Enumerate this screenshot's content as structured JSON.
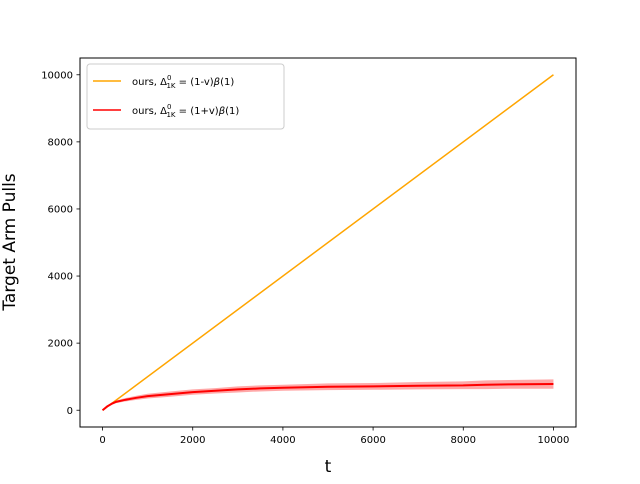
{
  "chart_data": {
    "type": "line",
    "title": "",
    "xlabel": "t",
    "ylabel": "Target Arm Pulls",
    "xlim": [
      -500,
      10500
    ],
    "ylim": [
      -500,
      10500
    ],
    "xticks": [
      0,
      2000,
      4000,
      6000,
      8000,
      10000
    ],
    "yticks": [
      0,
      2000,
      4000,
      6000,
      8000,
      10000
    ],
    "grid": false,
    "legend_position": "top-left",
    "series": [
      {
        "name": "ours, Δ⁰₁K = (1-v)β(1)",
        "legend_main": "ours, Δ",
        "legend_sup": "0",
        "legend_sub": "1K",
        "legend_tail": " = (1-v)",
        "legend_beta": "β",
        "legend_end": "(1)",
        "color": "#ffa500",
        "x": [
          0,
          10000
        ],
        "y": [
          0,
          10000
        ]
      },
      {
        "name": "ours, Δ⁰₁K = (1+v)β(1)",
        "legend_main": "ours, Δ",
        "legend_sup": "0",
        "legend_sub": "1K",
        "legend_tail": " = (1+v)",
        "legend_beta": "β",
        "legend_end": "(1)",
        "color": "#ff0000",
        "band_color": "#ff6060",
        "x": [
          0,
          100,
          200,
          300,
          500,
          750,
          1000,
          1500,
          2000,
          2500,
          3000,
          3500,
          4000,
          5000,
          6000,
          7000,
          8000,
          8500,
          9000,
          10000
        ],
        "y": [
          0,
          110,
          190,
          250,
          310,
          370,
          420,
          480,
          540,
          580,
          620,
          650,
          670,
          700,
          710,
          730,
          740,
          760,
          770,
          780
        ],
        "y_low": [
          0,
          95,
          160,
          210,
          260,
          310,
          350,
          400,
          460,
          500,
          530,
          560,
          580,
          600,
          610,
          620,
          630,
          630,
          640,
          640
        ],
        "y_high": [
          0,
          125,
          220,
          290,
          360,
          430,
          490,
          560,
          620,
          660,
          710,
          740,
          760,
          800,
          810,
          840,
          860,
          890,
          900,
          920
        ]
      }
    ]
  }
}
